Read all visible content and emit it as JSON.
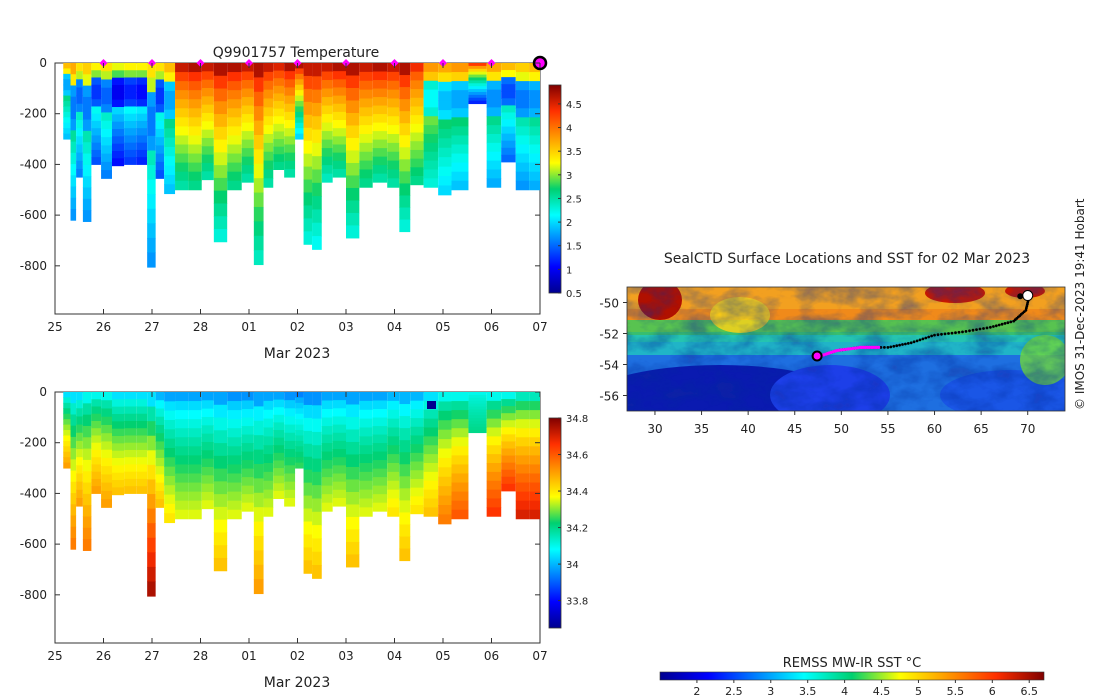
{
  "figure": {
    "credit": "© IMOS 31-Dec-2023 19:41 Hobart"
  },
  "chart_data": [
    {
      "id": "temperature-section",
      "type": "heatmap",
      "title": "Q9901757  Temperature",
      "xlabel": "Mar 2023",
      "ylabel": "",
      "x_tick_labels": [
        "25",
        "26",
        "27",
        "28",
        "01",
        "02",
        "03",
        "04",
        "05",
        "06",
        "07"
      ],
      "x_range": [
        0,
        10
      ],
      "y_ticks": [
        0,
        -200,
        -400,
        -600,
        -800
      ],
      "y_tick_labels": [
        "0",
        "-200",
        "-400",
        "-600",
        "-800"
      ],
      "ylim": [
        -990,
        0
      ],
      "colorbar": {
        "range": [
          0.5,
          4.9
        ],
        "ticks": [
          0.5,
          1,
          1.5,
          2,
          2.5,
          3,
          3.5,
          4,
          4.5
        ],
        "tick_labels": [
          "0.5",
          "1",
          "1.5",
          "2",
          "2.5",
          "3",
          "3.5",
          "4",
          "4.5"
        ]
      },
      "profile_markers_days": [
        1,
        2,
        3,
        4,
        5,
        6,
        7,
        8,
        9,
        10
      ],
      "profiles": [
        {
          "x": 0.27,
          "max_depth": 300,
          "surface": 3.6,
          "deep": 1.9
        },
        {
          "x": 0.37,
          "max_depth": 620,
          "surface": 3.7,
          "deep": 1.7
        },
        {
          "x": 0.5,
          "max_depth": 450,
          "surface": 3.4,
          "deep": 1.6
        },
        {
          "x": 0.65,
          "max_depth": 625,
          "surface": 3.5,
          "deep": 1.7
        },
        {
          "x": 0.85,
          "max_depth": 400,
          "surface": 3.3,
          "deep": 1.4
        },
        {
          "x": 1.05,
          "max_depth": 455,
          "surface": 3.4,
          "deep": 1.6
        },
        {
          "x": 1.3,
          "max_depth": 405,
          "surface": 3.2,
          "deep": 1.1
        },
        {
          "x": 1.55,
          "max_depth": 400,
          "surface": 3.3,
          "deep": 1.3
        },
        {
          "x": 1.8,
          "max_depth": 400,
          "surface": 3.3,
          "deep": 1.2
        },
        {
          "x": 2.0,
          "max_depth": 805,
          "surface": 3.4,
          "deep": 1.7
        },
        {
          "x": 2.15,
          "max_depth": 455,
          "surface": 3.4,
          "deep": 1.4
        },
        {
          "x": 2.35,
          "max_depth": 515,
          "surface": 3.6,
          "deep": 1.9
        },
        {
          "x": 2.6,
          "max_depth": 500,
          "surface": 4.6,
          "deep": 2.5
        },
        {
          "x": 2.9,
          "max_depth": 500,
          "surface": 4.7,
          "deep": 2.6
        },
        {
          "x": 3.15,
          "max_depth": 460,
          "surface": 4.6,
          "deep": 2.5
        },
        {
          "x": 3.4,
          "max_depth": 705,
          "surface": 4.7,
          "deep": 2.3
        },
        {
          "x": 3.7,
          "max_depth": 500,
          "surface": 4.7,
          "deep": 2.6
        },
        {
          "x": 4.0,
          "max_depth": 470,
          "surface": 4.6,
          "deep": 2.5
        },
        {
          "x": 4.2,
          "max_depth": 795,
          "surface": 4.7,
          "deep": 2.4
        },
        {
          "x": 4.4,
          "max_depth": 490,
          "surface": 4.6,
          "deep": 2.5
        },
        {
          "x": 4.6,
          "max_depth": 420,
          "surface": 4.5,
          "deep": 2.6
        },
        {
          "x": 4.85,
          "max_depth": 450,
          "surface": 4.7,
          "deep": 2.5
        },
        {
          "x": 5.05,
          "max_depth": 300,
          "surface": 4.7,
          "deep": 2.0
        },
        {
          "x": 5.2,
          "max_depth": 715,
          "surface": 4.6,
          "deep": 2.3
        },
        {
          "x": 5.4,
          "max_depth": 735,
          "surface": 4.6,
          "deep": 2.2
        },
        {
          "x": 5.6,
          "max_depth": 470,
          "surface": 4.6,
          "deep": 2.4
        },
        {
          "x": 5.85,
          "max_depth": 450,
          "surface": 4.7,
          "deep": 2.5
        },
        {
          "x": 6.15,
          "max_depth": 690,
          "surface": 4.7,
          "deep": 2.3
        },
        {
          "x": 6.4,
          "max_depth": 490,
          "surface": 4.6,
          "deep": 2.6
        },
        {
          "x": 6.7,
          "max_depth": 470,
          "surface": 4.7,
          "deep": 2.5
        },
        {
          "x": 7.0,
          "max_depth": 490,
          "surface": 4.6,
          "deep": 2.5
        },
        {
          "x": 7.2,
          "max_depth": 665,
          "surface": 4.7,
          "deep": 2.3
        },
        {
          "x": 7.45,
          "max_depth": 480,
          "surface": 4.4,
          "deep": 2.6
        },
        {
          "x": 7.75,
          "max_depth": 490,
          "surface": 3.8,
          "deep": 2.3
        },
        {
          "x": 8.05,
          "max_depth": 520,
          "surface": 3.7,
          "deep": 2.0
        },
        {
          "x": 8.3,
          "max_depth": 500,
          "surface": 3.8,
          "deep": 1.9
        },
        {
          "x": 8.75,
          "max_depth": 160,
          "surface": 4.3,
          "deep": 1.2
        },
        {
          "x": 9.05,
          "max_depth": 490,
          "surface": 3.7,
          "deep": 1.8
        },
        {
          "x": 9.35,
          "max_depth": 390,
          "surface": 3.6,
          "deep": 1.5
        },
        {
          "x": 9.65,
          "max_depth": 500,
          "surface": 3.5,
          "deep": 1.7
        },
        {
          "x": 9.9,
          "max_depth": 500,
          "surface": 3.6,
          "deep": 1.8
        }
      ]
    },
    {
      "id": "salinity-section",
      "type": "heatmap",
      "title": "",
      "xlabel": "Mar 2023",
      "ylabel": "",
      "x_tick_labels": [
        "25",
        "26",
        "27",
        "28",
        "01",
        "02",
        "03",
        "04",
        "05",
        "06",
        "07"
      ],
      "x_range": [
        0,
        10
      ],
      "y_ticks": [
        0,
        -200,
        -400,
        -600,
        -800
      ],
      "y_tick_labels": [
        "0",
        "-200",
        "-400",
        "-600",
        "-800"
      ],
      "ylim": [
        -990,
        0
      ],
      "colorbar": {
        "range": [
          33.65,
          34.8
        ],
        "ticks": [
          33.8,
          34,
          34.2,
          34.4,
          34.6,
          34.8
        ],
        "tick_labels": [
          "33.8",
          "34",
          "34.2",
          "34.4",
          "34.6",
          "34.8"
        ]
      },
      "profiles": [
        {
          "x": 0.27,
          "max_depth": 300,
          "surface": 34.05,
          "deep": 34.5
        },
        {
          "x": 0.37,
          "max_depth": 620,
          "surface": 34.05,
          "deep": 34.55
        },
        {
          "x": 0.5,
          "max_depth": 450,
          "surface": 34.05,
          "deep": 34.5
        },
        {
          "x": 0.65,
          "max_depth": 625,
          "surface": 34.1,
          "deep": 34.55
        },
        {
          "x": 0.85,
          "max_depth": 400,
          "surface": 34.1,
          "deep": 34.5
        },
        {
          "x": 1.05,
          "max_depth": 455,
          "surface": 34.1,
          "deep": 34.5
        },
        {
          "x": 1.3,
          "max_depth": 405,
          "surface": 34.05,
          "deep": 34.45
        },
        {
          "x": 1.55,
          "max_depth": 400,
          "surface": 34.05,
          "deep": 34.45
        },
        {
          "x": 1.8,
          "max_depth": 400,
          "surface": 34.05,
          "deep": 34.45
        },
        {
          "x": 2.0,
          "max_depth": 805,
          "surface": 34.05,
          "deep": 34.75
        },
        {
          "x": 2.15,
          "max_depth": 455,
          "surface": 34.0,
          "deep": 34.45
        },
        {
          "x": 2.35,
          "max_depth": 515,
          "surface": 33.98,
          "deep": 34.4
        },
        {
          "x": 2.6,
          "max_depth": 500,
          "surface": 33.98,
          "deep": 34.35
        },
        {
          "x": 2.9,
          "max_depth": 500,
          "surface": 33.98,
          "deep": 34.35
        },
        {
          "x": 3.15,
          "max_depth": 460,
          "surface": 33.98,
          "deep": 34.35
        },
        {
          "x": 3.4,
          "max_depth": 705,
          "surface": 33.98,
          "deep": 34.45
        },
        {
          "x": 3.7,
          "max_depth": 500,
          "surface": 33.96,
          "deep": 34.35
        },
        {
          "x": 4.0,
          "max_depth": 470,
          "surface": 33.96,
          "deep": 34.35
        },
        {
          "x": 4.2,
          "max_depth": 795,
          "surface": 33.98,
          "deep": 34.5
        },
        {
          "x": 4.4,
          "max_depth": 490,
          "surface": 33.98,
          "deep": 34.35
        },
        {
          "x": 4.6,
          "max_depth": 420,
          "surface": 33.98,
          "deep": 34.35
        },
        {
          "x": 4.85,
          "max_depth": 450,
          "surface": 33.96,
          "deep": 34.35
        },
        {
          "x": 5.05,
          "max_depth": 300,
          "surface": 33.94,
          "deep": 34.25
        },
        {
          "x": 5.2,
          "max_depth": 715,
          "surface": 33.96,
          "deep": 34.45
        },
        {
          "x": 5.4,
          "max_depth": 735,
          "surface": 33.96,
          "deep": 34.45
        },
        {
          "x": 5.6,
          "max_depth": 470,
          "surface": 33.98,
          "deep": 34.35
        },
        {
          "x": 5.85,
          "max_depth": 450,
          "surface": 33.98,
          "deep": 34.35
        },
        {
          "x": 6.15,
          "max_depth": 690,
          "surface": 33.98,
          "deep": 34.45
        },
        {
          "x": 6.4,
          "max_depth": 490,
          "surface": 33.98,
          "deep": 34.35
        },
        {
          "x": 6.7,
          "max_depth": 470,
          "surface": 33.98,
          "deep": 34.35
        },
        {
          "x": 7.0,
          "max_depth": 490,
          "surface": 34.0,
          "deep": 34.4
        },
        {
          "x": 7.2,
          "max_depth": 665,
          "surface": 34.0,
          "deep": 34.45
        },
        {
          "x": 7.45,
          "max_depth": 480,
          "surface": 34.0,
          "deep": 34.4
        },
        {
          "x": 7.75,
          "max_depth": 490,
          "surface": 34.05,
          "deep": 34.45
        },
        {
          "x": 8.05,
          "max_depth": 520,
          "surface": 34.1,
          "deep": 34.55
        },
        {
          "x": 8.3,
          "max_depth": 500,
          "surface": 34.1,
          "deep": 34.6
        },
        {
          "x": 8.75,
          "max_depth": 160,
          "surface": 34.1,
          "deep": 34.2
        },
        {
          "x": 9.05,
          "max_depth": 490,
          "surface": 34.1,
          "deep": 34.65
        },
        {
          "x": 9.35,
          "max_depth": 390,
          "surface": 34.1,
          "deep": 34.65
        },
        {
          "x": 9.65,
          "max_depth": 500,
          "surface": 34.15,
          "deep": 34.7
        },
        {
          "x": 9.9,
          "max_depth": 500,
          "surface": 34.15,
          "deep": 34.7
        }
      ]
    },
    {
      "id": "sst-map",
      "type": "heatmap",
      "title": "SealCTD Surface Locations and SST for 02 Mar 2023",
      "xlabel": "",
      "ylabel": "",
      "xlim": [
        27,
        74
      ],
      "ylim": [
        -57,
        -49
      ],
      "x_ticks": [
        30,
        35,
        40,
        45,
        50,
        55,
        60,
        65,
        70
      ],
      "x_tick_labels": [
        "30",
        "35",
        "40",
        "45",
        "50",
        "55",
        "60",
        "65",
        "70"
      ],
      "y_ticks": [
        -50,
        -52,
        -54,
        -56
      ],
      "y_tick_labels": [
        "-50",
        "-52",
        "-54",
        "-56"
      ],
      "colorbar": {
        "label": "REMSS MW-IR SST °C",
        "range": [
          1.5,
          6.7
        ],
        "ticks": [
          2,
          2.5,
          3,
          3.5,
          4,
          4.5,
          5,
          5.5,
          6,
          6.5
        ],
        "tick_labels": [
          "2",
          "2.5",
          "3",
          "3.5",
          "4",
          "4.5",
          "5",
          "5.5",
          "6",
          "6.5"
        ]
      },
      "track": [
        {
          "lon": 70.2,
          "lat": -49.5
        },
        {
          "lon": 69.8,
          "lat": -50.5
        },
        {
          "lon": 68.5,
          "lat": -51.2
        },
        {
          "lon": 66.0,
          "lat": -51.6
        },
        {
          "lon": 63.0,
          "lat": -51.9
        },
        {
          "lon": 60.0,
          "lat": -52.1
        },
        {
          "lon": 57.5,
          "lat": -52.6
        },
        {
          "lon": 55.0,
          "lat": -52.9
        },
        {
          "lon": 52.0,
          "lat": -52.9
        },
        {
          "lon": 49.5,
          "lat": -53.1
        },
        {
          "lon": 47.5,
          "lat": -53.5
        }
      ],
      "highlight_track": [
        {
          "lon": 54.0,
          "lat": -52.9
        },
        {
          "lon": 52.0,
          "lat": -52.9
        },
        {
          "lon": 49.5,
          "lat": -53.1
        },
        {
          "lon": 47.5,
          "lat": -53.5
        }
      ],
      "current_position": {
        "lon": 47.4,
        "lat": -53.45
      }
    }
  ]
}
